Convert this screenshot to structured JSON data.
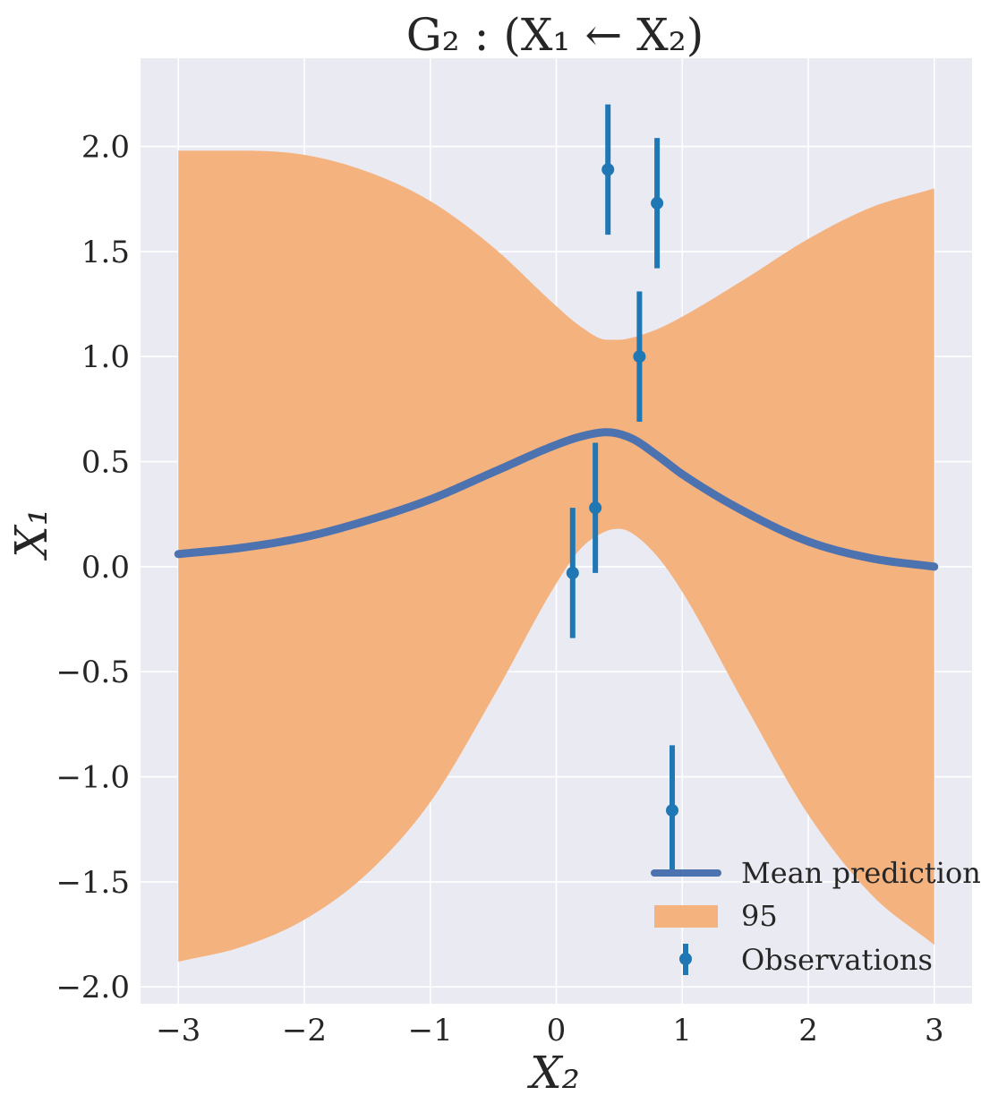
{
  "chart_data": {
    "type": "line",
    "title": "G₂ : (X₁ ← X₂)",
    "xlabel": "X₂",
    "ylabel": "X₁",
    "xlim": [
      -3.3,
      3.3
    ],
    "ylim": [
      -2.08,
      2.42
    ],
    "xticks": [
      -3,
      -2,
      -1,
      0,
      1,
      2,
      3
    ],
    "xtick_labels": [
      "−3",
      "−2",
      "−1",
      "0",
      "1",
      "2",
      "3"
    ],
    "yticks": [
      -2.0,
      -1.5,
      -1.0,
      -0.5,
      0.0,
      0.5,
      1.0,
      1.5,
      2.0
    ],
    "ytick_labels": [
      "−2.0",
      "−1.5",
      "−1.0",
      "−0.5",
      "0.0",
      "0.5",
      "1.0",
      "1.5",
      "2.0"
    ],
    "grid": true,
    "legend_position": "bottom-right",
    "series": [
      {
        "name": "Mean prediction",
        "kind": "line",
        "color": "#4c72b0",
        "x": [
          -3.0,
          -2.5,
          -2.0,
          -1.5,
          -1.0,
          -0.5,
          0.0,
          0.2,
          0.4,
          0.6,
          0.8,
          1.0,
          1.5,
          2.0,
          2.5,
          3.0
        ],
        "y": [
          0.06,
          0.09,
          0.14,
          0.22,
          0.32,
          0.45,
          0.58,
          0.62,
          0.64,
          0.61,
          0.53,
          0.44,
          0.26,
          0.12,
          0.04,
          0.0
        ]
      },
      {
        "name": "95",
        "kind": "band",
        "color": "#f4b27e",
        "x": [
          -3.0,
          -2.5,
          -2.0,
          -1.5,
          -1.0,
          -0.5,
          0.0,
          0.2,
          0.4,
          0.5,
          0.6,
          0.8,
          1.0,
          1.5,
          2.0,
          2.5,
          3.0
        ],
        "upper": [
          1.98,
          1.98,
          1.96,
          1.88,
          1.74,
          1.52,
          1.24,
          1.14,
          1.08,
          1.08,
          1.09,
          1.13,
          1.19,
          1.37,
          1.56,
          1.71,
          1.8
        ],
        "lower": [
          -1.88,
          -1.81,
          -1.68,
          -1.46,
          -1.12,
          -0.62,
          -0.08,
          0.09,
          0.17,
          0.18,
          0.16,
          0.05,
          -0.12,
          -0.66,
          -1.18,
          -1.56,
          -1.8
        ]
      },
      {
        "name": "Observations",
        "kind": "errorbar",
        "color": "#1f77b4",
        "x": [
          0.13,
          0.31,
          0.41,
          0.66,
          0.8,
          0.92
        ],
        "y": [
          -0.03,
          0.28,
          1.89,
          1.0,
          1.73,
          -1.16
        ],
        "err": [
          0.31,
          0.31,
          0.31,
          0.31,
          0.31,
          0.31
        ]
      }
    ]
  }
}
